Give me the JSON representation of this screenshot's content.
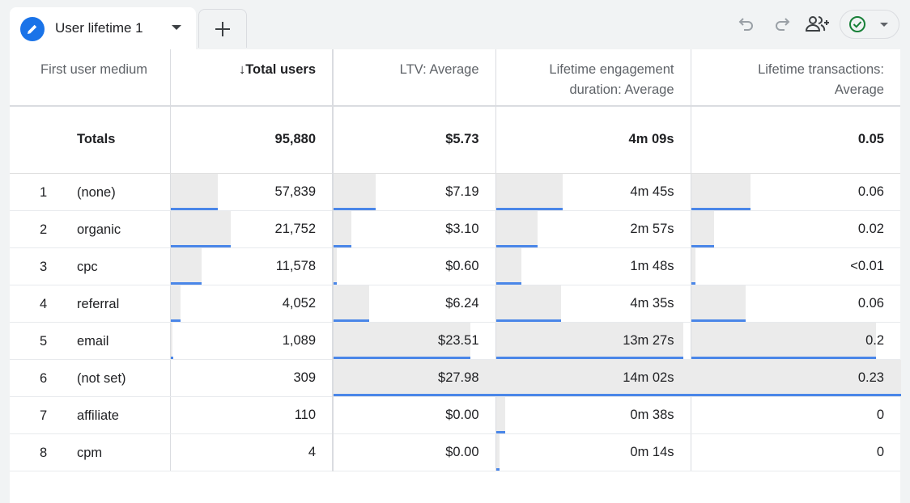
{
  "tab": {
    "title": "User lifetime 1"
  },
  "icons": {
    "pencil": "pencil-icon",
    "add": "add-icon",
    "undo": "undo-icon",
    "redo": "redo-icon",
    "share": "share-users-icon",
    "status": "check-circle-icon"
  },
  "colors": {
    "accent": "#1a73e8",
    "bar_line": "#4a86e8",
    "check": "#188038"
  },
  "table": {
    "headers": {
      "dimension": "First user medium",
      "sort_arrow": "↓",
      "total_users": "Total users",
      "ltv_avg": "LTV: Average",
      "engagement_line1": "Lifetime engagement",
      "engagement_line2": "duration: Average",
      "transactions_line1": "Lifetime transactions:",
      "transactions_line2": "Average"
    },
    "totals": {
      "label": "Totals",
      "total_users": "95,880",
      "ltv": "$5.73",
      "engagement": "4m 09s",
      "transactions": "0.05"
    },
    "rows": [
      {
        "n": "1",
        "medium": "(none)",
        "users": "57,839",
        "ltv": "$7.19",
        "eng": "4m 45s",
        "tx": "0.06",
        "pct": [
          0.29,
          0.26,
          0.34,
          0.28
        ]
      },
      {
        "n": "2",
        "medium": "organic",
        "users": "21,752",
        "ltv": "$3.10",
        "eng": "2m 57s",
        "tx": "0.02",
        "pct": [
          0.37,
          0.11,
          0.21,
          0.11
        ]
      },
      {
        "n": "3",
        "medium": "cpc",
        "users": "11,578",
        "ltv": "$0.60",
        "eng": "1m 48s",
        "tx": "<0.01",
        "pct": [
          0.19,
          0.02,
          0.13,
          0.02
        ]
      },
      {
        "n": "4",
        "medium": "referral",
        "users": "4,052",
        "ltv": "$6.24",
        "eng": "4m 35s",
        "tx": "0.06",
        "pct": [
          0.06,
          0.22,
          0.33,
          0.26
        ]
      },
      {
        "n": "5",
        "medium": "email",
        "users": "1,089",
        "ltv": "$23.51",
        "eng": "13m 27s",
        "tx": "0.2",
        "pct": [
          0.01,
          0.84,
          0.96,
          0.88
        ]
      },
      {
        "n": "6",
        "medium": "(not set)",
        "users": "309",
        "ltv": "$27.98",
        "eng": "14m 02s",
        "tx": "0.23",
        "pct": [
          0.0,
          1.0,
          1.0,
          1.0
        ]
      },
      {
        "n": "7",
        "medium": "affiliate",
        "users": "110",
        "ltv": "$0.00",
        "eng": "0m 38s",
        "tx": "0",
        "pct": [
          0.0,
          0.0,
          0.045,
          0.0
        ]
      },
      {
        "n": "8",
        "medium": "cpm",
        "users": "4",
        "ltv": "$0.00",
        "eng": "0m 14s",
        "tx": "0",
        "pct": [
          0.0,
          0.0,
          0.017,
          0.0
        ]
      }
    ]
  }
}
